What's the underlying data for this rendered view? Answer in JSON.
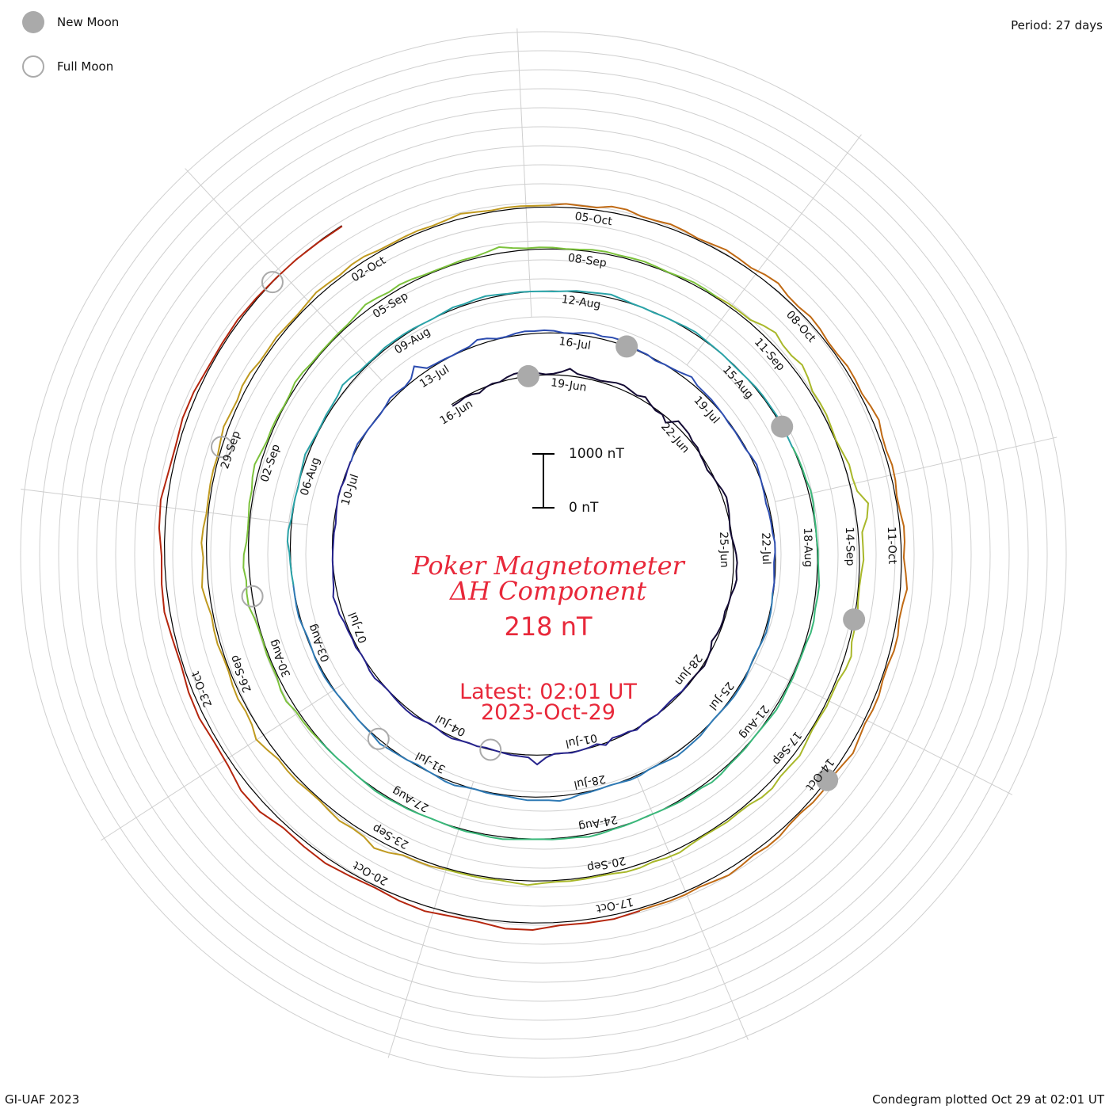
{
  "legend": {
    "new_moon_label": "New Moon",
    "full_moon_label": "Full Moon",
    "colors": {
      "new_moon_fill": "#aaaaaa",
      "full_moon_stroke": "#aaaaaa"
    }
  },
  "header": {
    "period_label": "Period: 27 days"
  },
  "center": {
    "title_line1": "Poker Magnetometer",
    "title_line2": "ΔH Component",
    "value": "218 nT",
    "latest_line1": "Latest: 02:01 UT",
    "latest_line2": "2023-Oct-29",
    "text_color": "#e8283a"
  },
  "scale_bar": {
    "top_label": "1000 nT",
    "bottom_label": "0 nT"
  },
  "footer": {
    "left": "GI-UAF 2023",
    "right": "Condegram plotted Oct 29 at 02:01 UT"
  },
  "chart_data": {
    "type": "line",
    "subtype": "condegram spiral (polar time-series, 27-day period)",
    "period_days": 27,
    "direction": "clockwise",
    "start_date": "16-Jun",
    "end_date": "29-Oct",
    "date_labels": [
      "16-Jun",
      "19-Jun",
      "22-Jun",
      "25-Jun",
      "28-Jun",
      "01-Jul",
      "04-Jul",
      "07-Jul",
      "10-Jul",
      "13-Jul",
      "16-Jul",
      "19-Jul",
      "22-Jul",
      "25-Jul",
      "28-Jul",
      "31-Jul",
      "03-Aug",
      "06-Aug",
      "09-Aug",
      "12-Aug",
      "15-Aug",
      "18-Aug",
      "21-Aug",
      "24-Aug",
      "27-Aug",
      "30-Aug",
      "02-Sep",
      "05-Sep",
      "08-Sep",
      "11-Sep",
      "14-Sep",
      "17-Sep",
      "20-Sep",
      "23-Sep",
      "26-Sep",
      "29-Sep",
      "02-Oct",
      "05-Oct",
      "08-Oct",
      "11-Oct",
      "14-Oct",
      "17-Oct",
      "20-Oct",
      "23-Oct"
    ],
    "series_colors": [
      "#140b34",
      "#26238c",
      "#2d4db0",
      "#2f7ab5",
      "#2aa3a8",
      "#3ab87a",
      "#7cc23c",
      "#a9b82a",
      "#c09a20",
      "#c06a14",
      "#b5260e"
    ],
    "new_moon_dates": [
      "18-Jun",
      "17-Jul",
      "16-Aug",
      "15-Sep",
      "14-Oct"
    ],
    "full_moon_dates": [
      "03-Jul",
      "01-Aug",
      "31-Aug",
      "29-Sep",
      "28-Oct"
    ],
    "series": [
      {
        "values_nT": [
          180,
          190,
          200,
          170,
          160,
          210,
          240,
          220,
          260,
          300,
          380,
          300,
          250,
          230,
          260,
          280,
          330,
          300,
          280,
          250,
          240,
          300,
          320,
          290,
          280,
          270,
          300,
          230,
          180,
          200,
          140,
          300,
          350,
          310,
          240,
          250,
          200,
          190,
          180,
          200,
          230,
          260,
          280,
          300,
          260,
          220,
          200,
          210,
          250,
          260,
          300,
          320,
          290,
          260,
          230,
          210,
          190,
          200,
          180,
          170,
          160,
          200,
          230,
          250,
          220,
          200,
          190
        ]
      },
      {
        "values_nT": [
          200,
          210,
          180,
          160,
          200,
          220,
          190,
          200,
          240,
          200,
          180,
          170,
          250,
          180,
          200,
          220,
          230,
          210,
          200,
          260,
          380,
          300,
          260,
          240,
          230,
          210,
          200,
          220,
          210,
          230,
          250,
          240,
          210,
          200,
          230,
          260,
          290,
          250,
          230,
          220,
          240,
          260,
          250,
          230,
          220,
          240,
          230,
          260,
          250,
          270,
          300,
          380,
          260,
          240,
          230,
          220,
          210,
          200,
          180,
          170,
          200,
          210,
          230,
          220,
          200,
          210,
          220
        ]
      },
      {
        "values_nT": [
          210,
          230,
          260,
          240,
          220,
          210,
          200,
          230,
          260,
          250,
          240,
          280,
          380,
          260,
          250,
          230,
          220,
          240,
          260,
          300,
          280,
          240,
          230,
          250,
          280,
          300,
          270,
          250,
          230,
          240,
          260,
          280,
          300,
          320,
          280,
          260,
          240,
          230,
          200,
          220,
          240,
          260,
          300,
          280,
          260,
          240,
          230,
          220,
          200,
          210,
          200,
          190,
          230,
          250,
          240,
          210,
          200,
          180,
          170,
          190,
          200,
          220,
          210,
          190,
          200,
          210,
          200
        ]
      },
      {
        "values_nT": [
          200,
          220,
          240,
          260,
          250,
          230,
          210,
          200,
          220,
          240,
          260,
          250,
          230,
          220,
          210,
          230,
          250,
          280,
          300,
          270,
          250,
          230,
          220,
          240,
          250,
          230,
          210,
          220,
          240,
          260,
          280,
          300,
          330,
          300,
          270,
          260,
          250,
          240,
          230,
          220,
          240,
          260,
          250,
          230,
          210,
          200,
          220,
          240,
          250,
          260,
          240,
          230,
          220,
          210,
          200,
          220,
          230,
          240,
          250,
          230,
          210,
          200,
          220,
          240,
          230,
          220,
          210
        ]
      },
      {
        "values_nT": [
          210,
          220,
          230,
          250,
          270,
          260,
          240,
          230,
          220,
          210,
          230,
          250,
          260,
          250,
          240,
          230,
          240,
          260,
          290,
          300,
          280,
          260,
          240,
          230,
          250,
          260,
          240,
          230,
          220,
          210,
          230,
          250,
          260,
          270,
          260,
          250,
          240,
          230,
          220,
          210,
          200,
          220,
          240,
          260,
          280,
          270,
          250,
          230,
          220,
          210,
          220,
          230,
          240,
          250,
          240,
          230,
          220,
          210,
          200,
          220,
          230,
          240,
          250,
          240,
          230,
          220,
          210
        ]
      },
      {
        "values_nT": [
          220,
          230,
          240,
          250,
          260,
          250,
          240,
          230,
          220,
          230,
          240,
          250,
          260,
          270,
          280,
          270,
          260,
          250,
          240,
          230,
          240,
          250,
          260,
          250,
          240,
          230,
          220,
          230,
          240,
          250,
          260,
          270,
          260,
          250,
          240,
          230,
          220,
          210,
          220,
          230,
          240,
          250,
          260,
          250,
          240,
          230,
          220,
          230,
          240,
          250,
          260,
          250,
          240,
          230,
          220,
          210,
          220,
          230,
          240,
          250,
          240,
          230,
          220,
          210,
          220,
          230,
          240
        ]
      },
      {
        "values_nT": [
          230,
          240,
          260,
          280,
          300,
          280,
          260,
          250,
          240,
          230,
          250,
          270,
          300,
          330,
          350,
          320,
          290,
          270,
          250,
          240,
          260,
          290,
          320,
          300,
          280,
          260,
          250,
          240,
          230,
          250,
          270,
          260,
          250,
          240,
          230,
          240,
          260,
          280,
          300,
          320,
          300,
          280,
          260,
          250,
          240,
          230,
          250,
          270,
          290,
          310,
          290,
          270,
          250,
          240,
          230,
          240,
          250,
          260,
          270,
          260,
          250,
          240,
          230,
          240,
          250,
          260,
          250
        ]
      },
      {
        "values_nT": [
          240,
          250,
          270,
          300,
          340,
          380,
          420,
          400,
          360,
          330,
          300,
          280,
          260,
          250,
          240,
          260,
          290,
          330,
          380,
          440,
          400,
          350,
          310,
          280,
          260,
          250,
          240,
          260,
          280,
          300,
          320,
          300,
          280,
          260,
          250,
          240,
          260,
          280,
          300,
          320,
          340,
          320,
          300,
          280,
          260,
          250,
          240,
          250,
          260,
          280,
          300,
          290,
          280,
          270,
          260,
          250,
          240,
          250,
          260,
          270,
          280,
          270,
          260,
          250,
          240,
          250,
          260
        ]
      },
      {
        "values_nT": [
          250,
          260,
          280,
          300,
          330,
          360,
          340,
          310,
          290,
          270,
          260,
          250,
          260,
          280,
          300,
          320,
          350,
          330,
          300,
          280,
          270,
          260,
          250,
          260,
          270,
          280,
          300,
          320,
          340,
          320,
          300,
          280,
          270,
          260,
          250,
          260,
          270,
          280,
          290,
          300,
          310,
          300,
          290,
          280,
          270,
          260,
          250,
          260,
          270,
          280,
          290,
          300,
          290,
          280,
          270,
          260,
          250,
          260,
          270,
          280,
          290,
          280,
          270,
          260,
          250,
          260,
          270
        ]
      },
      {
        "values_nT": [
          260,
          270,
          280,
          300,
          320,
          310,
          300,
          290,
          280,
          270,
          260,
          270,
          280,
          290,
          300,
          310,
          320,
          310,
          300,
          290,
          280,
          270,
          260,
          270,
          280,
          290,
          300,
          310,
          300,
          290,
          280,
          270,
          260,
          270,
          280,
          290,
          300,
          310,
          320,
          310,
          300,
          290,
          280,
          270,
          260,
          270,
          280,
          290,
          300,
          310,
          300,
          290,
          280,
          270,
          260,
          270,
          280,
          290,
          300,
          310,
          300,
          290,
          280,
          270,
          260,
          270,
          280
        ]
      },
      {
        "values_nT": [
          270,
          280,
          300,
          320,
          340,
          330,
          320,
          310,
          300,
          290,
          280,
          290,
          300,
          320,
          350,
          380,
          360,
          340,
          320,
          300,
          290,
          280,
          290,
          300,
          310,
          320,
          330,
          320,
          310,
          300,
          290,
          280,
          270,
          260,
          250,
          240,
          230,
          220,
          210,
          200
        ]
      }
    ]
  }
}
